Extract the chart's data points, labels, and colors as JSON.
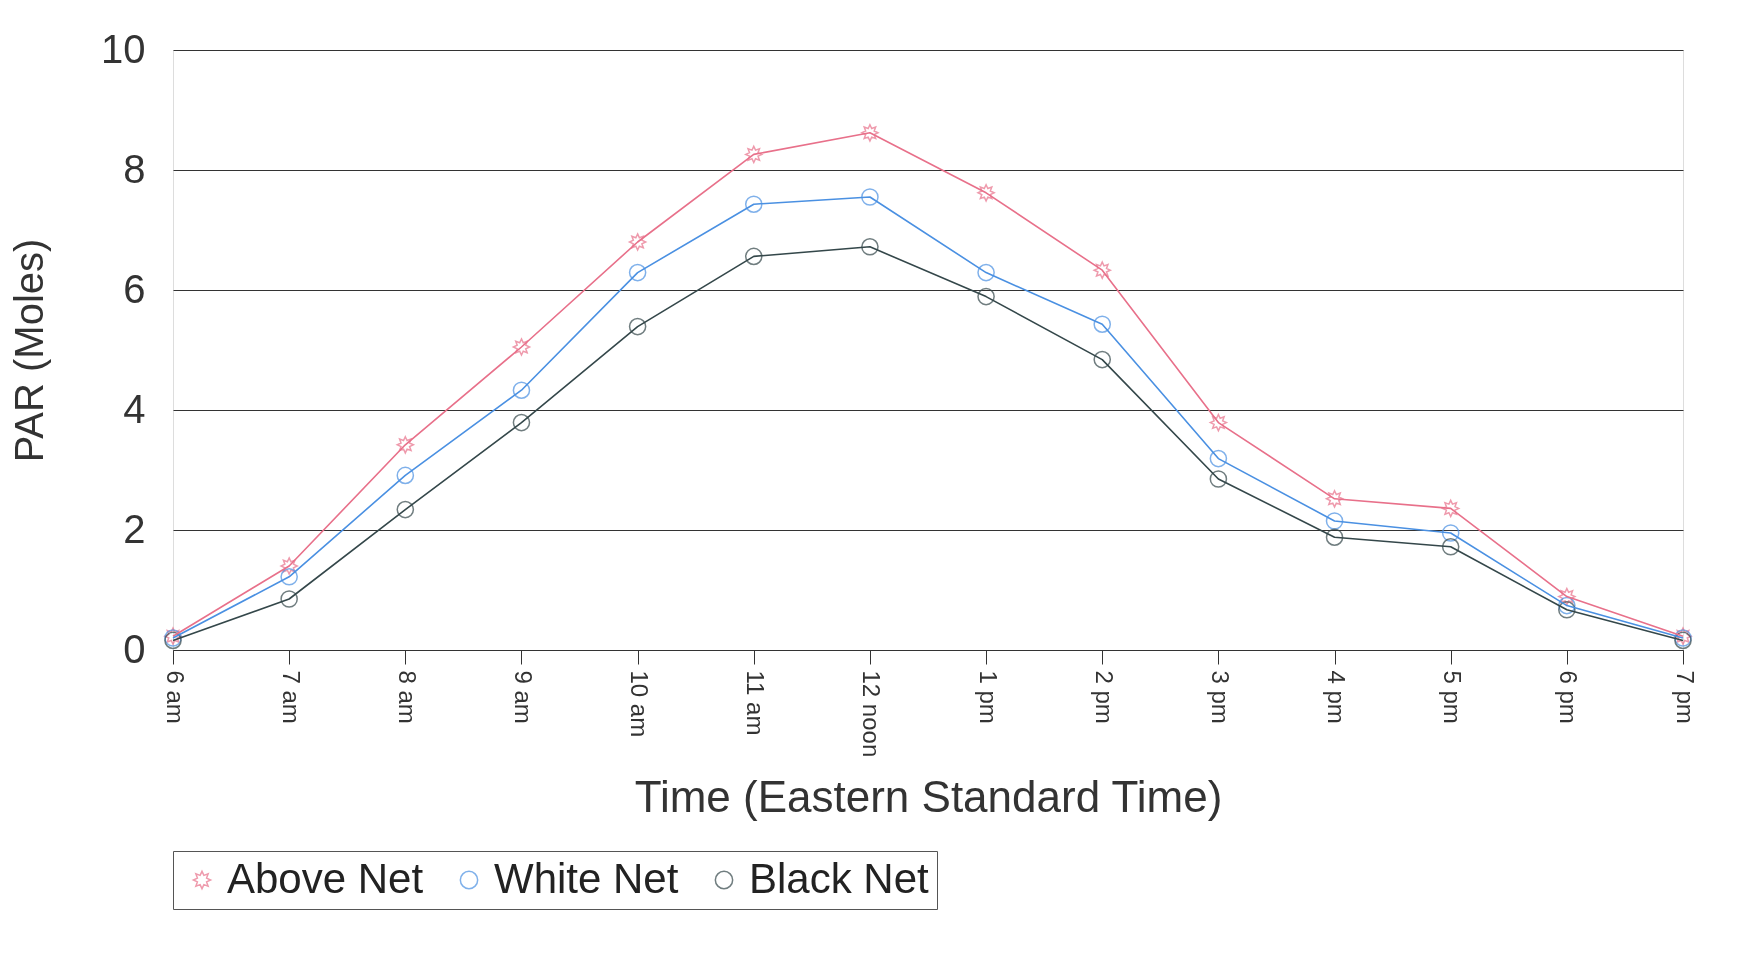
{
  "chart_data": {
    "type": "line",
    "xlabel": "Time (Eastern Standard Time)",
    "ylabel": "PAR (Moles)",
    "categories": [
      "6 am",
      "7 am",
      "8 am",
      "9 am",
      "10 am",
      "11 am",
      "12 noon",
      "1 pm",
      "2 pm",
      "3 pm",
      "4 pm",
      "5 pm",
      "6 pm",
      "7 pm"
    ],
    "series": [
      {
        "name": "Above Net",
        "color": "#e8708a",
        "marker": "star",
        "values": [
          0.23,
          1.4,
          3.42,
          5.05,
          6.8,
          8.26,
          8.62,
          7.62,
          6.33,
          3.79,
          2.52,
          2.36,
          0.89,
          0.23
        ]
      },
      {
        "name": "White Net",
        "color": "#4a90e2",
        "marker": "circle",
        "values": [
          0.2,
          1.22,
          2.91,
          4.33,
          6.29,
          7.43,
          7.55,
          6.29,
          5.43,
          3.19,
          2.15,
          1.95,
          0.74,
          0.2
        ]
      },
      {
        "name": "Black Net",
        "color": "#34474a",
        "marker": "circle",
        "values": [
          0.16,
          0.85,
          2.34,
          3.79,
          5.39,
          6.56,
          6.72,
          5.89,
          4.84,
          2.85,
          1.88,
          1.72,
          0.67,
          0.16
        ]
      }
    ],
    "ylim": [
      0,
      10
    ],
    "yticks": [
      0,
      2,
      4,
      6,
      8,
      10
    ],
    "grid": "y",
    "legend": "bottom",
    "line_style": "solid"
  }
}
